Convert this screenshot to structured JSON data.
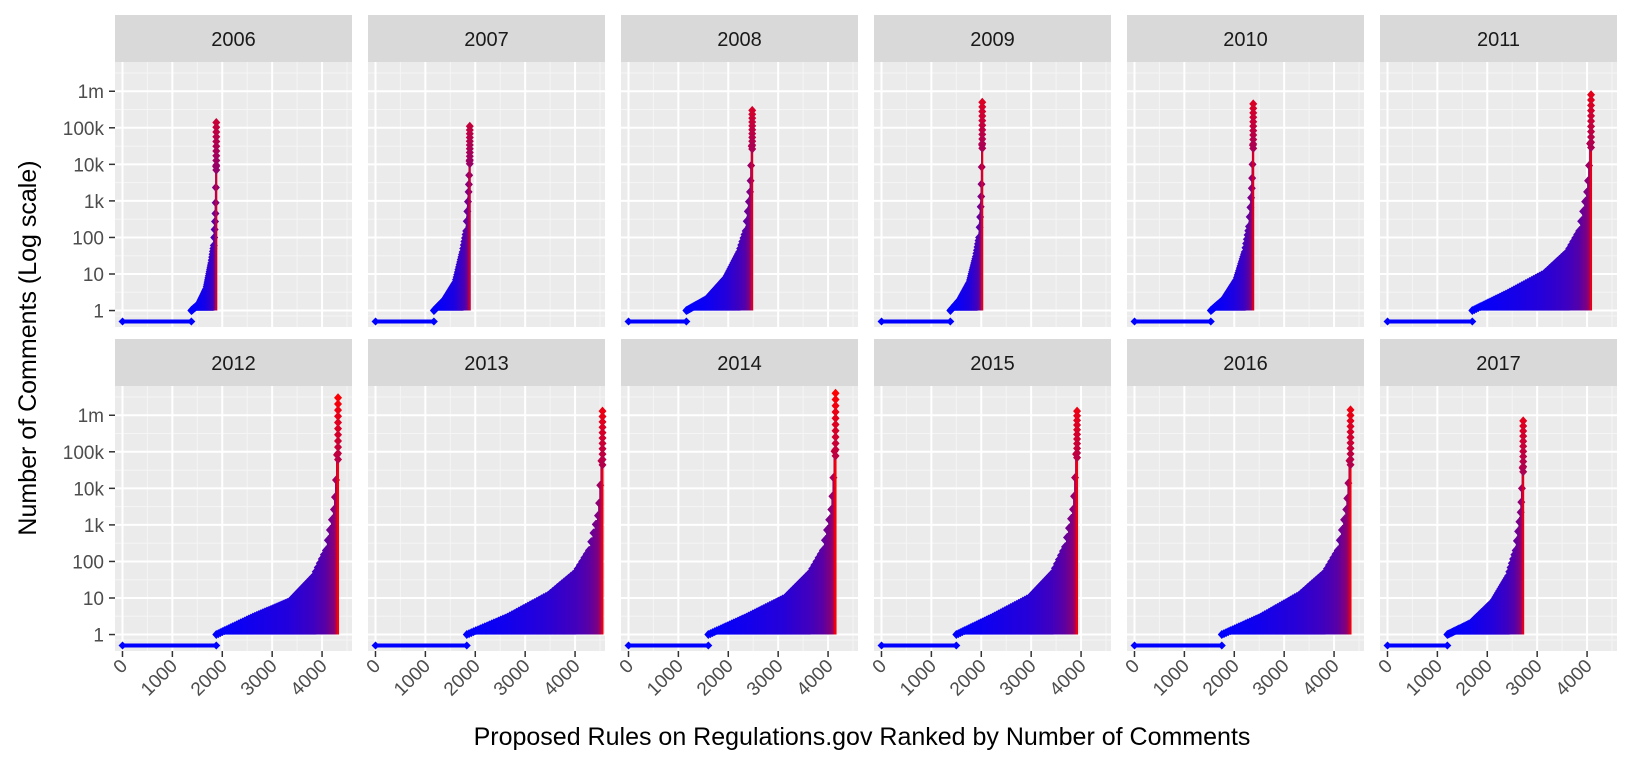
{
  "chart_data": {
    "type": "scatter",
    "xlabel": "Proposed Rules on Regulations.gov Ranked by Number of Comments",
    "ylabel": "Number of Comments (Log scale)",
    "x_ticks": [
      0,
      1000,
      2000,
      3000,
      4000
    ],
    "x_tick_labels": [
      "0",
      "1000",
      "2000",
      "3000",
      "4000"
    ],
    "y_ticks": [
      1,
      10,
      100,
      1000,
      10000,
      100000,
      1000000
    ],
    "y_tick_labels": [
      "1",
      "10",
      "100",
      "1k",
      "10k",
      "100k",
      "1m"
    ],
    "y_scale": "log10",
    "xlim": [
      -150,
      4600
    ],
    "ylim_log10": [
      -0.45,
      6.8
    ],
    "zero_plotted_at_log10": -0.3,
    "grid": true,
    "legend": "none",
    "color_scale": {
      "low": "#0000ff",
      "high": "#ff0000"
    },
    "panels": [
      {
        "year": "2006",
        "n_rules": 1880,
        "n_zero": 1380,
        "counts_anchor": [
          [
            0,
            1
          ],
          [
            0.3,
            1.5
          ],
          [
            0.6,
            4
          ],
          [
            0.8,
            20
          ],
          [
            0.9,
            60
          ],
          [
            0.97,
            500
          ],
          [
            0.99,
            5000
          ],
          [
            1,
            140000
          ]
        ]
      },
      {
        "year": "2007",
        "n_rules": 1890,
        "n_zero": 1170,
        "counts_anchor": [
          [
            0,
            1
          ],
          [
            0.3,
            2
          ],
          [
            0.6,
            6
          ],
          [
            0.8,
            40
          ],
          [
            0.9,
            150
          ],
          [
            0.97,
            2000
          ],
          [
            0.99,
            8000
          ],
          [
            1,
            110000
          ]
        ]
      },
      {
        "year": "2008",
        "n_rules": 2480,
        "n_zero": 1160,
        "counts_anchor": [
          [
            0,
            1
          ],
          [
            0.3,
            2
          ],
          [
            0.6,
            8
          ],
          [
            0.8,
            40
          ],
          [
            0.9,
            150
          ],
          [
            0.97,
            2000
          ],
          [
            0.99,
            20000
          ],
          [
            1,
            300000
          ]
        ]
      },
      {
        "year": "2009",
        "n_rules": 2020,
        "n_zero": 1380,
        "counts_anchor": [
          [
            0,
            1
          ],
          [
            0.3,
            2
          ],
          [
            0.6,
            6
          ],
          [
            0.8,
            30
          ],
          [
            0.9,
            100
          ],
          [
            0.97,
            1500
          ],
          [
            0.99,
            20000
          ],
          [
            1,
            500000
          ]
        ]
      },
      {
        "year": "2010",
        "n_rules": 2380,
        "n_zero": 1530,
        "counts_anchor": [
          [
            0,
            1
          ],
          [
            0.3,
            2
          ],
          [
            0.6,
            7
          ],
          [
            0.8,
            40
          ],
          [
            0.9,
            200
          ],
          [
            0.97,
            2500
          ],
          [
            0.99,
            20000
          ],
          [
            1,
            450000
          ]
        ]
      },
      {
        "year": "2011",
        "n_rules": 4080,
        "n_zero": 1700,
        "counts_anchor": [
          [
            0,
            1
          ],
          [
            0.3,
            3
          ],
          [
            0.6,
            10
          ],
          [
            0.8,
            40
          ],
          [
            0.9,
            150
          ],
          [
            0.97,
            2000
          ],
          [
            0.99,
            20000
          ],
          [
            1,
            800000
          ]
        ]
      },
      {
        "year": "2012",
        "n_rules": 4320,
        "n_zero": 1880,
        "counts_anchor": [
          [
            0,
            1
          ],
          [
            0.3,
            3
          ],
          [
            0.6,
            8
          ],
          [
            0.8,
            40
          ],
          [
            0.9,
            200
          ],
          [
            0.97,
            3000
          ],
          [
            0.99,
            40000
          ],
          [
            1,
            3000000
          ]
        ]
      },
      {
        "year": "2013",
        "n_rules": 4550,
        "n_zero": 1830,
        "counts_anchor": [
          [
            0,
            1
          ],
          [
            0.3,
            3
          ],
          [
            0.6,
            12
          ],
          [
            0.8,
            50
          ],
          [
            0.9,
            200
          ],
          [
            0.97,
            2000
          ],
          [
            0.99,
            30000
          ],
          [
            1,
            1300000
          ]
        ]
      },
      {
        "year": "2014",
        "n_rules": 4150,
        "n_zero": 1600,
        "counts_anchor": [
          [
            0,
            1
          ],
          [
            0.3,
            3
          ],
          [
            0.6,
            10
          ],
          [
            0.8,
            50
          ],
          [
            0.9,
            200
          ],
          [
            0.97,
            3000
          ],
          [
            0.99,
            50000
          ],
          [
            1,
            4000000
          ]
        ]
      },
      {
        "year": "2015",
        "n_rules": 3920,
        "n_zero": 1500,
        "counts_anchor": [
          [
            0,
            1
          ],
          [
            0.3,
            3
          ],
          [
            0.6,
            10
          ],
          [
            0.8,
            50
          ],
          [
            0.9,
            250
          ],
          [
            0.97,
            3000
          ],
          [
            0.99,
            50000
          ],
          [
            1,
            1300000
          ]
        ]
      },
      {
        "year": "2016",
        "n_rules": 4330,
        "n_zero": 1750,
        "counts_anchor": [
          [
            0,
            1
          ],
          [
            0.3,
            3
          ],
          [
            0.6,
            12
          ],
          [
            0.8,
            50
          ],
          [
            0.9,
            200
          ],
          [
            0.97,
            3000
          ],
          [
            0.99,
            30000
          ],
          [
            1,
            1400000
          ]
        ]
      },
      {
        "year": "2017",
        "n_rules": 2720,
        "n_zero": 1200,
        "counts_anchor": [
          [
            0,
            1
          ],
          [
            0.3,
            2
          ],
          [
            0.6,
            8
          ],
          [
            0.8,
            40
          ],
          [
            0.9,
            200
          ],
          [
            0.97,
            2500
          ],
          [
            0.99,
            20000
          ],
          [
            1,
            700000
          ]
        ]
      }
    ]
  }
}
